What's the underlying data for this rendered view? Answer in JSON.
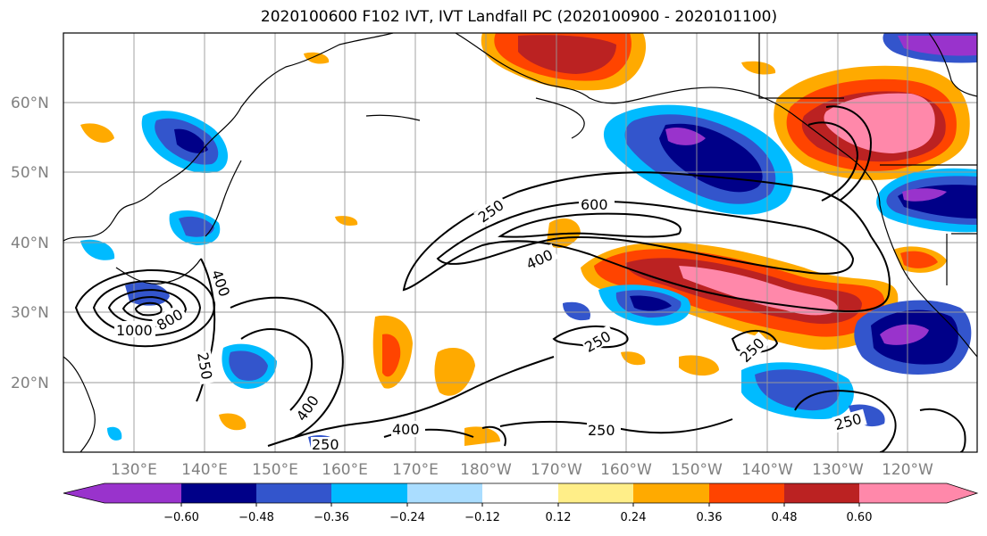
{
  "title": "2020100600 F102 IVT, IVT Landfall PC (2020100900 - 2020101100)",
  "lat_labels": [
    "60°N",
    "50°N",
    "40°N",
    "30°N",
    "20°N"
  ],
  "lon_labels": [
    "130°E",
    "140°E",
    "150°E",
    "160°E",
    "170°E",
    "180°W",
    "170°W",
    "160°W",
    "150°W",
    "140°W",
    "130°W",
    "120°W"
  ],
  "contour_labels": [
    "250",
    "600",
    "400",
    "1000",
    "800",
    "400",
    "250",
    "400",
    "250",
    "400",
    "250",
    "250",
    "250",
    "250"
  ],
  "colorbar": {
    "colors": [
      "#9933cc",
      "#000088",
      "#3355cc",
      "#00bbff",
      "#aaddff",
      "#ffffff",
      "#ffee88",
      "#ffaa00",
      "#ff4400",
      "#bb2222",
      "#ff88aa"
    ],
    "ticks": [
      "−0.60",
      "−0.48",
      "−0.36",
      "−0.24",
      "−0.12",
      "0.12",
      "0.24",
      "0.36",
      "0.48",
      "0.60"
    ]
  }
}
